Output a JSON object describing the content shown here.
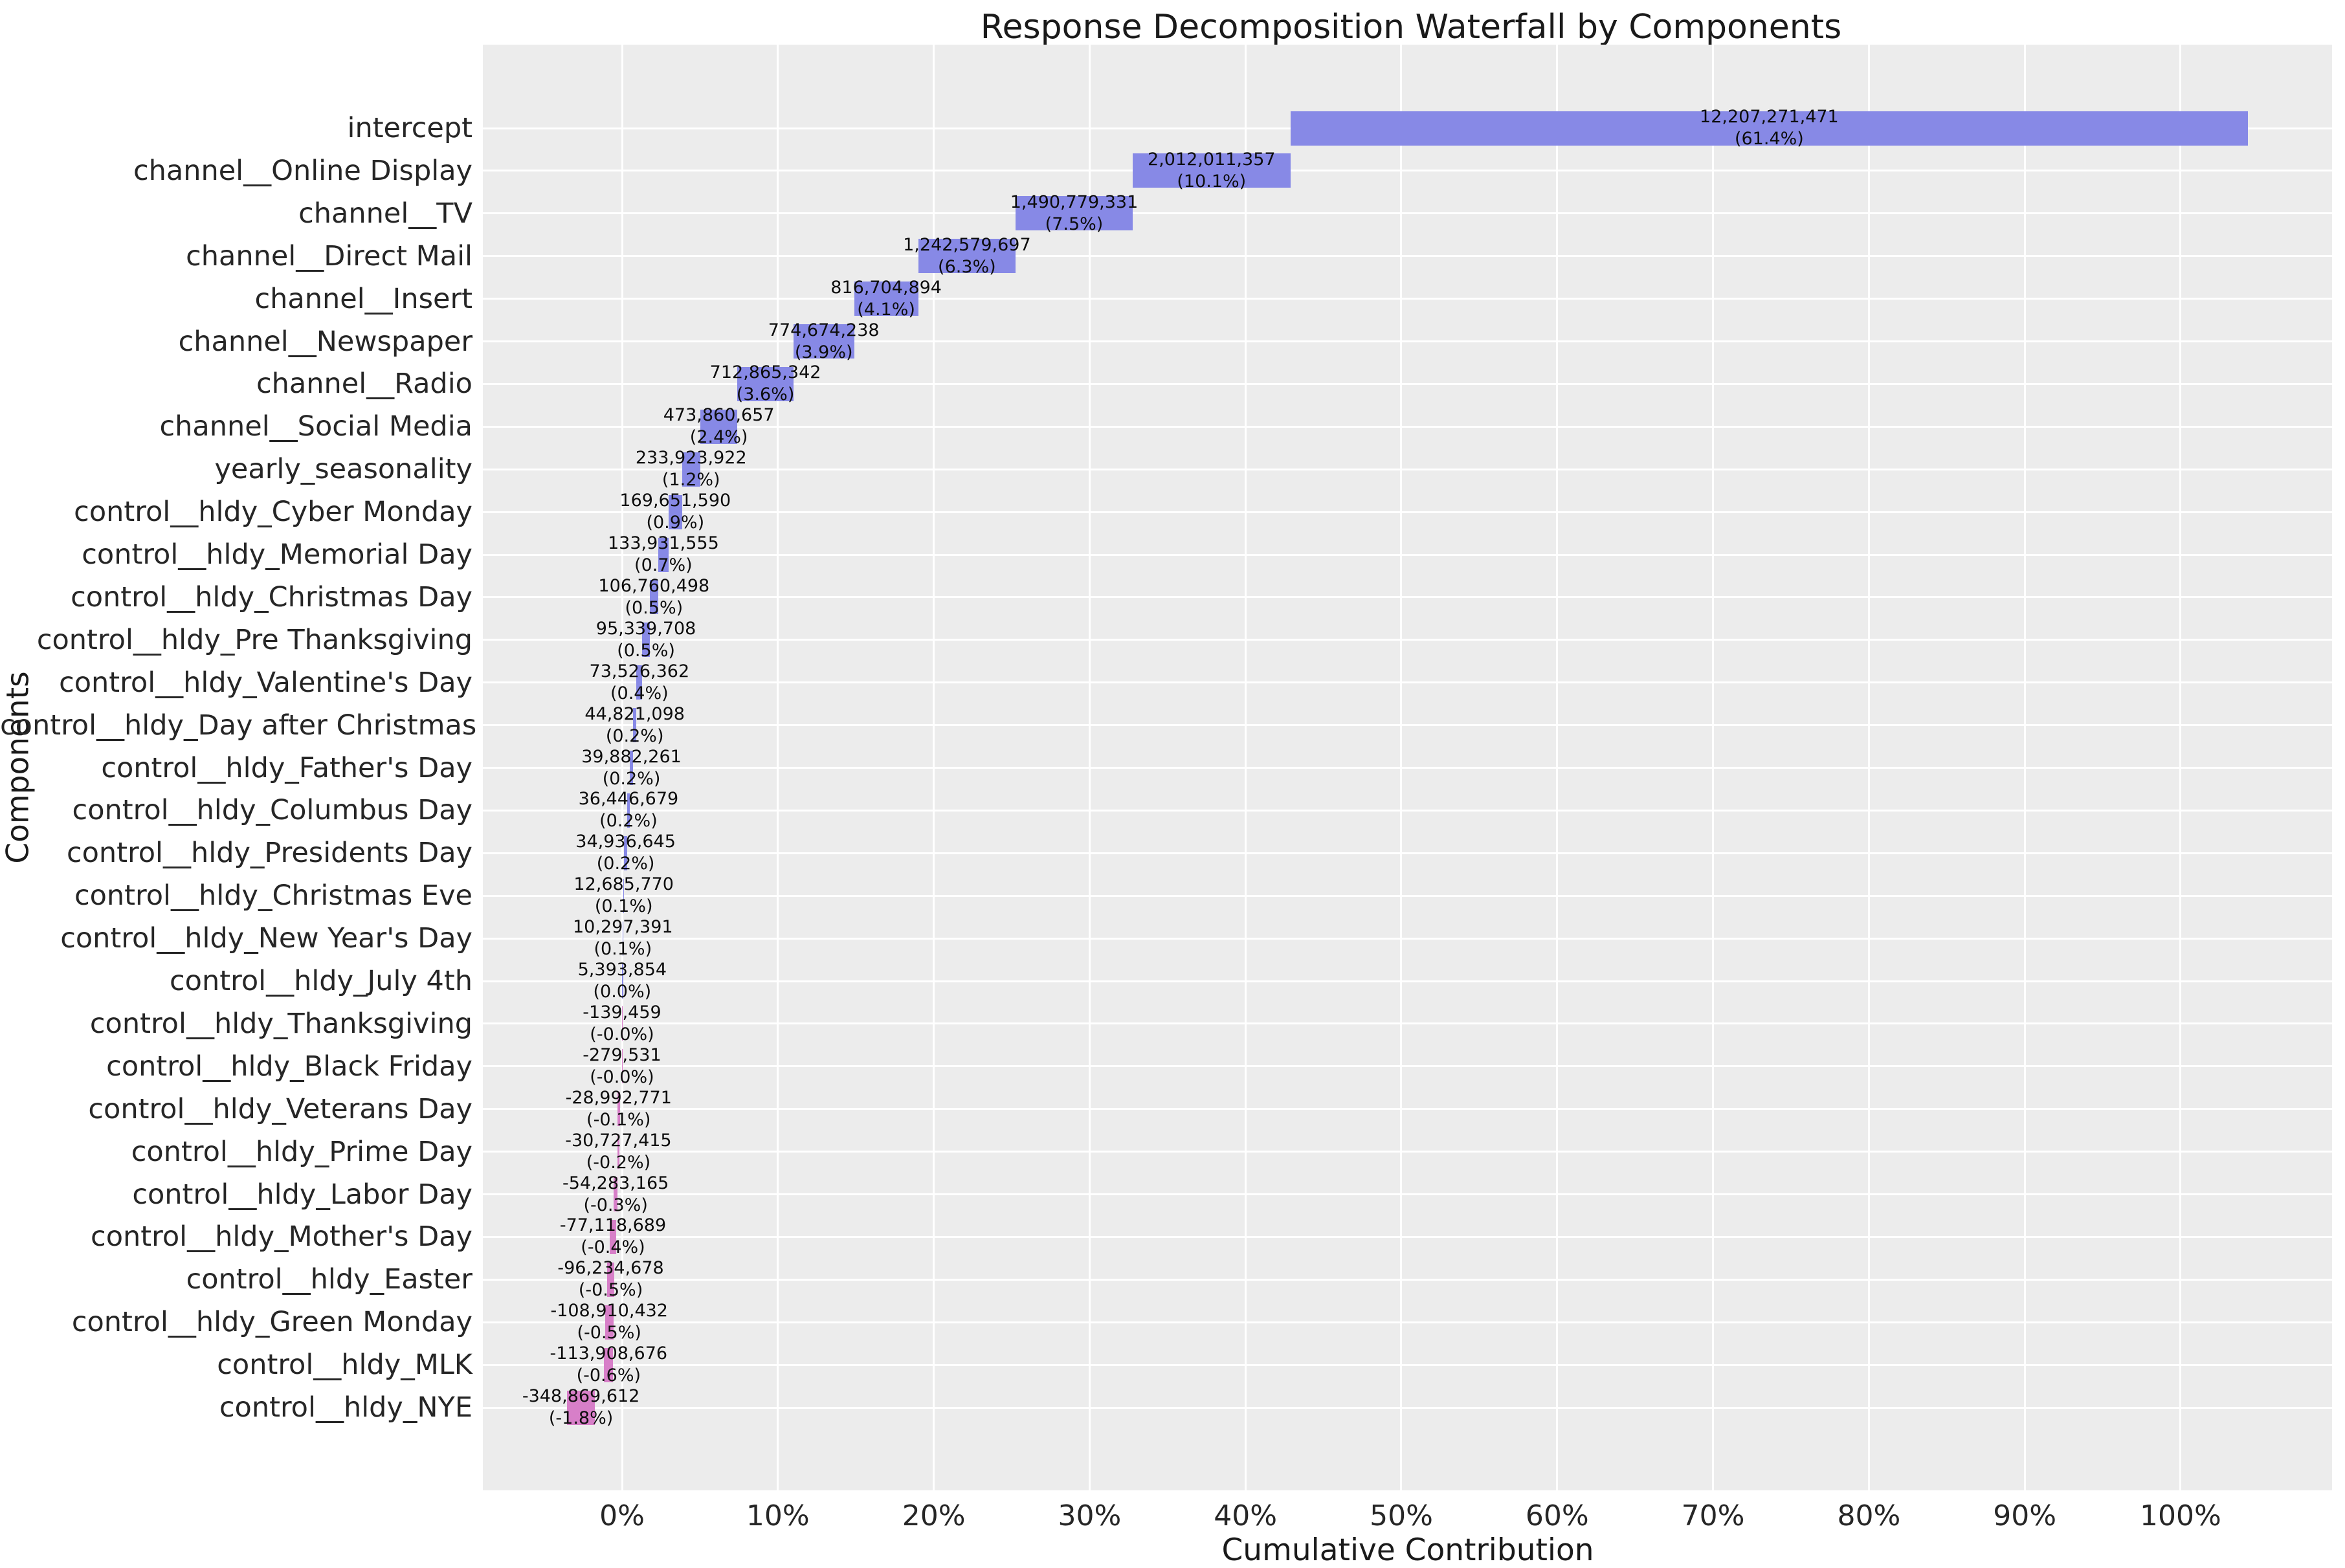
{
  "chart_data": {
    "type": "bar",
    "subtype": "waterfall",
    "orientation": "horizontal",
    "title": "Response Decomposition Waterfall by Components",
    "xlabel": "Cumulative Contribution",
    "ylabel": "Components",
    "legend": "none",
    "grid": "on",
    "plot_bg_color": "#ececec",
    "grid_color": "#ffffff",
    "positive_color": "#8789e6",
    "negative_color": "#d77fc8",
    "x_tick_pcts": [
      0,
      10,
      20,
      30,
      40,
      50,
      60,
      70,
      80,
      90,
      100
    ],
    "x_tick_labels": [
      "0%",
      "10%",
      "20%",
      "30%",
      "40%",
      "50%",
      "60%",
      "70%",
      "80%",
      "90%",
      "100%"
    ],
    "xlim_pct": [
      -8.93,
      109.72
    ],
    "categories": [
      "intercept",
      "channel__Online Display",
      "channel__TV",
      "channel__Direct Mail",
      "channel__Insert",
      "channel__Newspaper",
      "channel__Radio",
      "channel__Social Media",
      "yearly_seasonality",
      "control__hldy_Cyber Monday",
      "control__hldy_Memorial Day",
      "control__hldy_Christmas Day",
      "control__hldy_Pre Thanksgiving",
      "control__hldy_Valentine's Day",
      "control__hldy_Day after Christmas",
      "control__hldy_Father's Day",
      "control__hldy_Columbus Day",
      "control__hldy_Presidents Day",
      "control__hldy_Christmas Eve",
      "control__hldy_New Year's Day",
      "control__hldy_July 4th",
      "control__hldy_Thanksgiving",
      "control__hldy_Black Friday",
      "control__hldy_Veterans Day",
      "control__hldy_Prime Day",
      "control__hldy_Labor Day",
      "control__hldy_Mother's Day",
      "control__hldy_Easter",
      "control__hldy_Green Monday",
      "control__hldy_MLK",
      "control__hldy_NYE"
    ],
    "values": [
      12207271471,
      2012011357,
      1490779331,
      1242579697,
      816704894,
      774674238,
      712865342,
      473860657,
      233923922,
      169651590,
      133931555,
      106760498,
      95339708,
      73526362,
      44821098,
      39882261,
      36446679,
      34936645,
      12685770,
      10297391,
      5393854,
      -139459,
      -279531,
      -28992771,
      -30727415,
      -54283165,
      -77118689,
      -96234678,
      -108910432,
      -113908676,
      -348869612
    ],
    "value_labels": [
      "12,207,271,471",
      "2,012,011,357",
      "1,490,779,331",
      "1,242,579,697",
      "816,704,894",
      "774,674,238",
      "712,865,342",
      "473,860,657",
      "233,923,922",
      "169,651,590",
      "133,931,555",
      "106,760,498",
      "95,339,708",
      "73,526,362",
      "44,821,098",
      "39,882,261",
      "36,446,679",
      "34,936,645",
      "12,685,770",
      "10,297,391",
      "5,393,854",
      "-139,459",
      "-279,531",
      "-28,992,771",
      "-30,727,415",
      "-54,283,165",
      "-77,118,689",
      "-96,234,678",
      "-108,910,432",
      "-113,908,676",
      "-348,869,612"
    ],
    "pct_labels": [
      "(61.4%)",
      "(10.1%)",
      "(7.5%)",
      "(6.3%)",
      "(4.1%)",
      "(3.9%)",
      "(3.6%)",
      "(2.4%)",
      "(1.2%)",
      "(0.9%)",
      "(0.7%)",
      "(0.5%)",
      "(0.5%)",
      "(0.4%)",
      "(0.2%)",
      "(0.2%)",
      "(0.2%)",
      "(0.2%)",
      "(0.1%)",
      "(0.1%)",
      "(0.0%)",
      "(-0.0%)",
      "(-0.0%)",
      "(-0.1%)",
      "(-0.2%)",
      "(-0.3%)",
      "(-0.4%)",
      "(-0.5%)",
      "(-0.5%)",
      "(-0.6%)",
      "(-1.8%)"
    ]
  }
}
